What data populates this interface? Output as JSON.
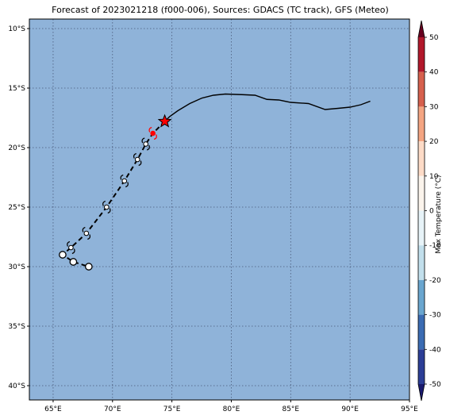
{
  "title": "Forecast of 2023021218 (f000-006), Sources: GDACS (TC track), GFS (Meteo)",
  "colors": {
    "ocean": "#8fb3d9",
    "frame": "#000000",
    "track": "#000000",
    "current_position": "#ff0000",
    "grid": "#4a5a7a"
  },
  "map": {
    "lon_range": [
      63,
      95
    ],
    "lat_range": [
      -41.2,
      -9.2
    ],
    "lon_ticks": [
      {
        "value": 65,
        "label": "65°E"
      },
      {
        "value": 70,
        "label": "70°E"
      },
      {
        "value": 75,
        "label": "75°E"
      },
      {
        "value": 80,
        "label": "80°E"
      },
      {
        "value": 85,
        "label": "85°E"
      },
      {
        "value": 90,
        "label": "90°E"
      },
      {
        "value": 95,
        "label": "95°E"
      }
    ],
    "lat_ticks": [
      {
        "value": -10,
        "label": "10°S"
      },
      {
        "value": -15,
        "label": "15°S"
      },
      {
        "value": -20,
        "label": "20°S"
      },
      {
        "value": -25,
        "label": "25°S"
      },
      {
        "value": -30,
        "label": "30°S"
      },
      {
        "value": -35,
        "label": "35°S"
      },
      {
        "value": -40,
        "label": "40°S"
      }
    ],
    "grid": "dotted",
    "past_track": [
      [
        91.7,
        -16.1
      ],
      [
        90.9,
        -16.4
      ],
      [
        90.0,
        -16.6
      ],
      [
        89.0,
        -16.7
      ],
      [
        87.9,
        -16.8
      ],
      [
        86.5,
        -16.3
      ],
      [
        85.0,
        -16.2
      ],
      [
        84.0,
        -16.0
      ],
      [
        83.0,
        -15.95
      ],
      [
        82.0,
        -15.6
      ],
      [
        80.9,
        -15.55
      ],
      [
        79.5,
        -15.5
      ],
      [
        78.5,
        -15.6
      ],
      [
        77.5,
        -15.85
      ],
      [
        76.5,
        -16.3
      ],
      [
        75.5,
        -16.9
      ],
      [
        74.8,
        -17.4
      ],
      [
        74.4,
        -17.8
      ]
    ],
    "current_position": {
      "lon": 74.4,
      "lat": -17.8
    },
    "forecast_track": [
      [
        74.4,
        -17.8
      ],
      [
        73.4,
        -18.8
      ],
      [
        72.8,
        -19.7
      ],
      [
        72.1,
        -21.0
      ],
      [
        71.0,
        -22.8
      ],
      [
        69.5,
        -25.0
      ],
      [
        67.8,
        -27.2
      ],
      [
        66.5,
        -28.4
      ],
      [
        65.8,
        -29.0
      ],
      [
        66.7,
        -29.6
      ],
      [
        68.0,
        -30.0
      ]
    ],
    "forecast_points": [
      {
        "lon": 73.4,
        "lat": -18.8,
        "marker": "tropical-storm",
        "color": "#ff0000"
      },
      {
        "lon": 72.8,
        "lat": -19.7,
        "marker": "tropical-storm"
      },
      {
        "lon": 72.1,
        "lat": -21.0,
        "marker": "tropical-storm"
      },
      {
        "lon": 71.0,
        "lat": -22.8,
        "marker": "tropical-storm"
      },
      {
        "lon": 69.5,
        "lat": -25.0,
        "marker": "tropical-storm"
      },
      {
        "lon": 67.8,
        "lat": -27.2,
        "marker": "tropical-storm"
      },
      {
        "lon": 66.5,
        "lat": -28.4,
        "marker": "tropical-storm"
      },
      {
        "lon": 65.8,
        "lat": -29.0,
        "marker": "circle"
      },
      {
        "lon": 66.7,
        "lat": -29.6,
        "marker": "circle"
      },
      {
        "lon": 68.0,
        "lat": -30.0,
        "marker": "circle"
      }
    ]
  },
  "colorbar": {
    "label": "Max Temperature (°C)",
    "range": [
      -55,
      55
    ],
    "ticks": [
      50,
      40,
      30,
      20,
      10,
      0,
      -10,
      -20,
      -30,
      -40,
      -50
    ],
    "levels": [
      {
        "from": 50,
        "to": 55,
        "color": "#67001f"
      },
      {
        "from": 40,
        "to": 50,
        "color": "#b2182b"
      },
      {
        "from": 30,
        "to": 40,
        "color": "#d6604d"
      },
      {
        "from": 20,
        "to": 30,
        "color": "#f4a582"
      },
      {
        "from": 10,
        "to": 20,
        "color": "#fddbc7"
      },
      {
        "from": 0,
        "to": 10,
        "color": "#fbf4ec"
      },
      {
        "from": -10,
        "to": 0,
        "color": "#e7f3f8"
      },
      {
        "from": -20,
        "to": -10,
        "color": "#c2dfec"
      },
      {
        "from": -30,
        "to": -20,
        "color": "#6aa6cf"
      },
      {
        "from": -40,
        "to": -30,
        "color": "#3b6cb3"
      },
      {
        "from": -50,
        "to": -40,
        "color": "#2c3e96"
      },
      {
        "from": -55,
        "to": -50,
        "color": "#1a1a6e"
      }
    ]
  }
}
